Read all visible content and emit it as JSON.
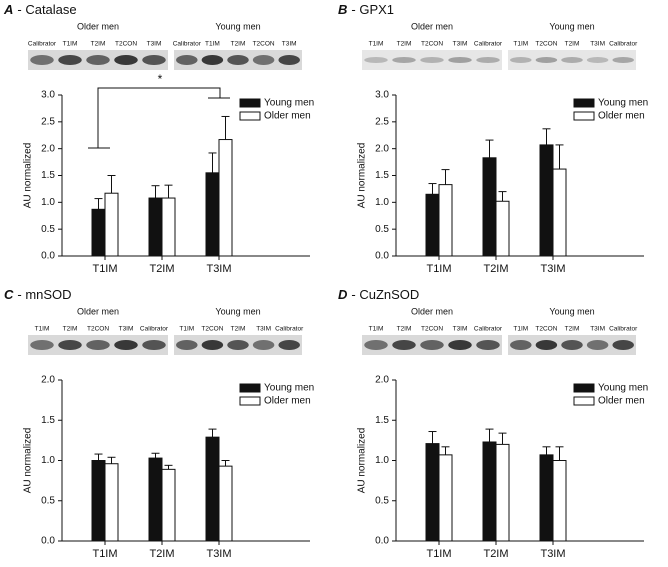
{
  "chart_data": [
    {
      "type": "bar",
      "label": "A",
      "title": "- Catalase",
      "ylabel": "AU normalized",
      "blot_groups": [
        {
          "name": "Older men",
          "lanes": [
            "Calibrator",
            "T1IM",
            "T2IM",
            "T2CON",
            "T3IM"
          ]
        },
        {
          "name": "Young men",
          "lanes": [
            "Calibrator",
            "T1IM",
            "T2IM",
            "T2CON",
            "T3IM"
          ]
        }
      ],
      "categories": [
        "T1IM",
        "T2IM",
        "T3IM"
      ],
      "series": [
        {
          "name": "Young men",
          "color": "#111111",
          "values": [
            0.87,
            1.08,
            1.55
          ],
          "errors": [
            0.2,
            0.23,
            0.37
          ]
        },
        {
          "name": "Older men",
          "color": "#ffffff",
          "values": [
            1.17,
            1.08,
            2.17
          ],
          "errors": [
            0.33,
            0.24,
            0.43
          ]
        }
      ],
      "ylim": [
        0,
        3
      ],
      "yticks": [
        {
          "value": 0,
          "label": "0.0"
        },
        0.5,
        {
          "value": 1,
          "label": "1.0"
        },
        1.5,
        {
          "value": 2,
          "label": "2.0"
        },
        2.5,
        {
          "value": 3,
          "label": "3.0"
        }
      ],
      "annotation": "*"
    },
    {
      "type": "bar",
      "label": "B",
      "title": "- GPX1",
      "ylabel": "AU normalized",
      "blot_groups": [
        {
          "name": "Older men",
          "lanes": [
            "T1IM",
            "T2IM",
            "T2CON",
            "T3IM",
            "Calibrator"
          ]
        },
        {
          "name": "Young men",
          "lanes": [
            "T1IM",
            "T2CON",
            "T2IM",
            "T3IM",
            "Calibrator"
          ]
        }
      ],
      "categories": [
        "T1IM",
        "T2IM",
        "T3IM"
      ],
      "series": [
        {
          "name": "Young men",
          "color": "#111111",
          "values": [
            1.15,
            1.83,
            2.07
          ],
          "errors": [
            0.2,
            0.33,
            0.3
          ]
        },
        {
          "name": "Older men",
          "color": "#ffffff",
          "values": [
            1.33,
            1.02,
            1.62
          ],
          "errors": [
            0.28,
            0.18,
            0.45
          ]
        }
      ],
      "ylim": [
        0,
        3
      ],
      "yticks": [
        {
          "value": 0,
          "label": "0.0"
        },
        0.5,
        {
          "value": 1,
          "label": "1.0"
        },
        1.5,
        {
          "value": 2,
          "label": "2.0"
        },
        2.5,
        {
          "value": 3,
          "label": "3.0"
        }
      ]
    },
    {
      "type": "bar",
      "label": "C",
      "title": "- mnSOD",
      "ylabel": "AU normalized",
      "blot_groups": [
        {
          "name": "Older men",
          "lanes": [
            "T1IM",
            "T2IM",
            "T2CON",
            "T3IM",
            "Calibrator"
          ]
        },
        {
          "name": "Young men",
          "lanes": [
            "T1IM",
            "T2CON",
            "T2IM",
            "T3IM",
            "Calibrator"
          ]
        }
      ],
      "categories": [
        "T1IM",
        "T2IM",
        "T3IM"
      ],
      "series": [
        {
          "name": "Young men",
          "color": "#111111",
          "values": [
            1.0,
            1.03,
            1.29
          ],
          "errors": [
            0.08,
            0.06,
            0.1
          ]
        },
        {
          "name": "Older men",
          "color": "#ffffff",
          "values": [
            0.96,
            0.89,
            0.93
          ],
          "errors": [
            0.08,
            0.05,
            0.07
          ]
        }
      ],
      "ylim": [
        0,
        2
      ],
      "yticks": [
        {
          "value": 0,
          "label": "0.0"
        },
        0.5,
        {
          "value": 1,
          "label": "1.0"
        },
        1.5,
        {
          "value": 2,
          "label": "2.0"
        }
      ]
    },
    {
      "type": "bar",
      "label": "D",
      "title": "- CuZnSOD",
      "ylabel": "AU normalized",
      "blot_groups": [
        {
          "name": "Older men",
          "lanes": [
            "T1IM",
            "T2IM",
            "T2CON",
            "T3IM",
            "Calibrator"
          ]
        },
        {
          "name": "Young men",
          "lanes": [
            "T1IM",
            "T2CON",
            "T2IM",
            "T3IM",
            "Calibrator"
          ]
        }
      ],
      "categories": [
        "T1IM",
        "T2IM",
        "T3IM"
      ],
      "series": [
        {
          "name": "Young men",
          "color": "#111111",
          "values": [
            1.21,
            1.23,
            1.07
          ],
          "errors": [
            0.15,
            0.16,
            0.1
          ]
        },
        {
          "name": "Older men",
          "color": "#ffffff",
          "values": [
            1.07,
            1.2,
            1.0
          ],
          "errors": [
            0.1,
            0.14,
            0.17
          ]
        }
      ],
      "ylim": [
        0,
        2
      ],
      "yticks": [
        {
          "value": 0,
          "label": "0.0"
        },
        0.5,
        {
          "value": 1,
          "label": "1.0"
        },
        1.5,
        {
          "value": 2,
          "label": "2.0"
        }
      ]
    }
  ]
}
